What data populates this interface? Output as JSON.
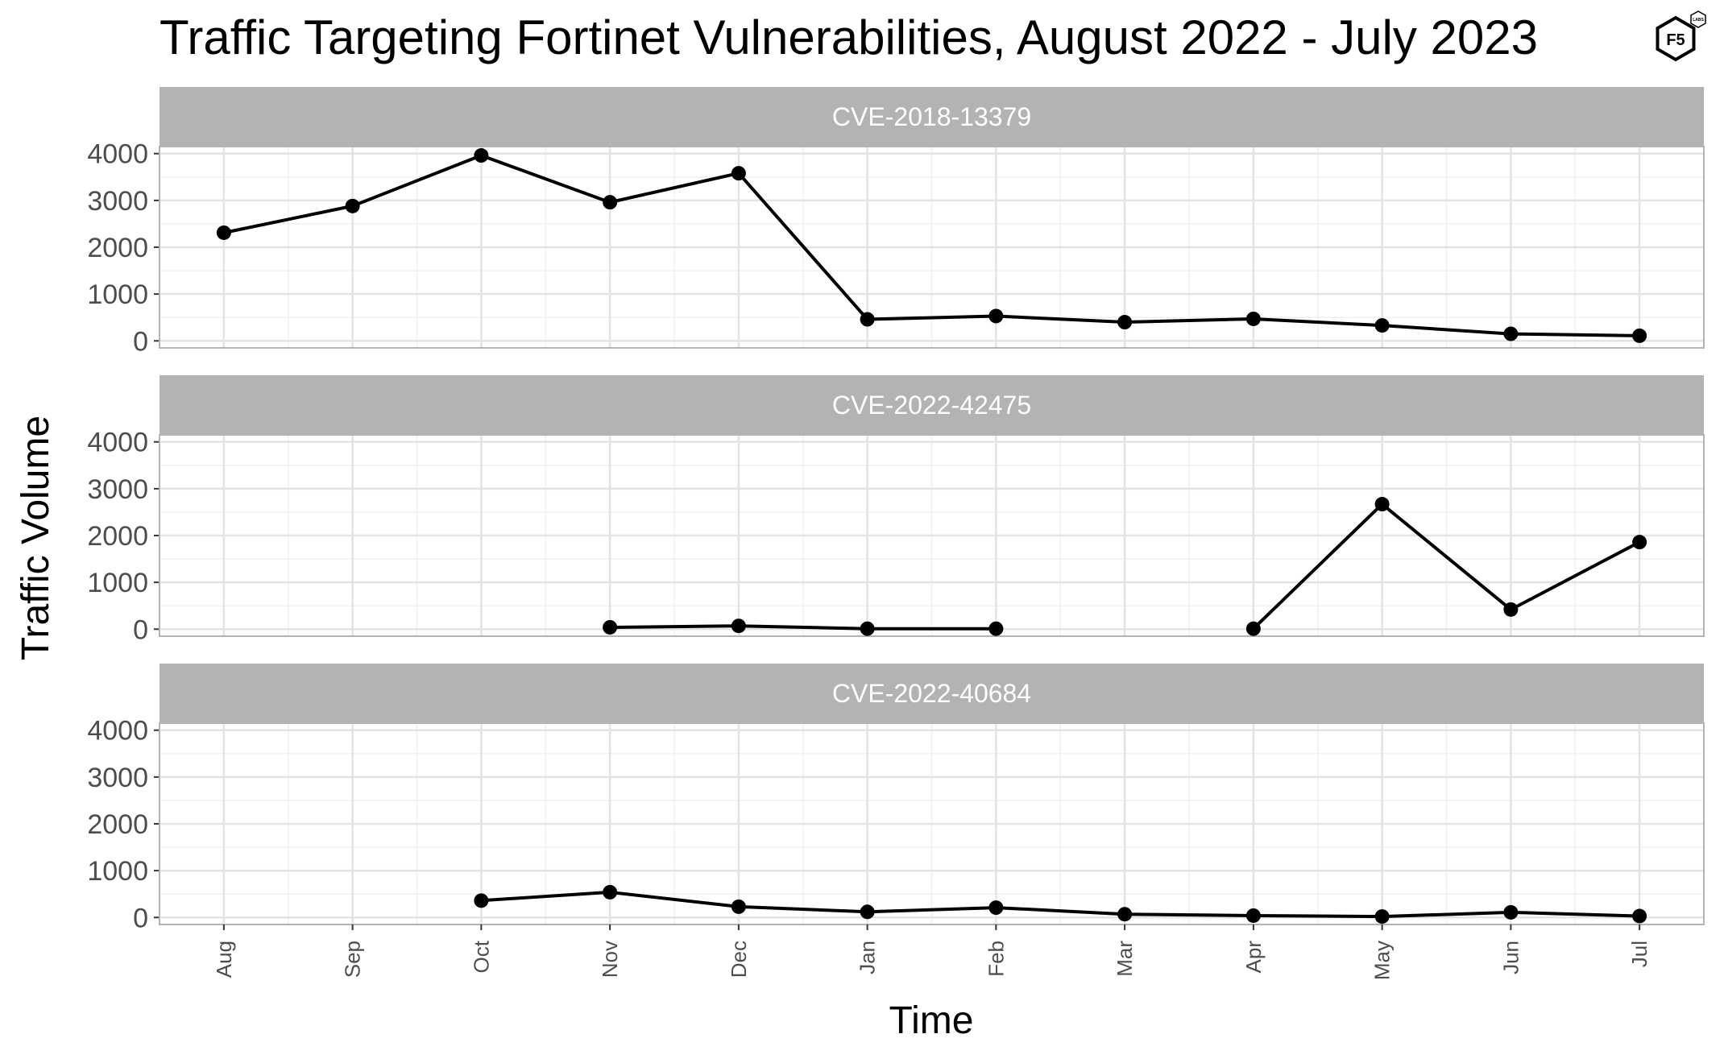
{
  "logo": {
    "name": "F5 Labs",
    "text": "F5",
    "subtext": "LABS"
  },
  "chart_data": {
    "type": "line",
    "title": "Traffic Targeting Fortinet Vulnerabilities, August 2022 - July 2023",
    "xlabel": "Time",
    "ylabel": "Traffic Volume",
    "categories": [
      "Aug",
      "Sep",
      "Oct",
      "Nov",
      "Dec",
      "Jan",
      "Feb",
      "Mar",
      "Apr",
      "May",
      "Jun",
      "Jul"
    ],
    "yticks": [
      0,
      1000,
      2000,
      3000,
      4000
    ],
    "ylim": [
      -150,
      4150
    ],
    "grid": true,
    "legend": "none",
    "line_color": "#000000",
    "strip_color": "#b3b3b3",
    "panels": [
      {
        "name": "CVE-2018-13379",
        "values": [
          2310,
          2880,
          3960,
          2960,
          3580,
          460,
          530,
          400,
          470,
          330,
          150,
          110
        ]
      },
      {
        "name": "CVE-2022-42475",
        "values": [
          null,
          null,
          null,
          40,
          70,
          10,
          10,
          null,
          10,
          2670,
          420,
          1860
        ]
      },
      {
        "name": "CVE-2022-40684",
        "values": [
          null,
          null,
          360,
          540,
          230,
          120,
          210,
          70,
          40,
          20,
          110,
          30
        ]
      }
    ]
  }
}
